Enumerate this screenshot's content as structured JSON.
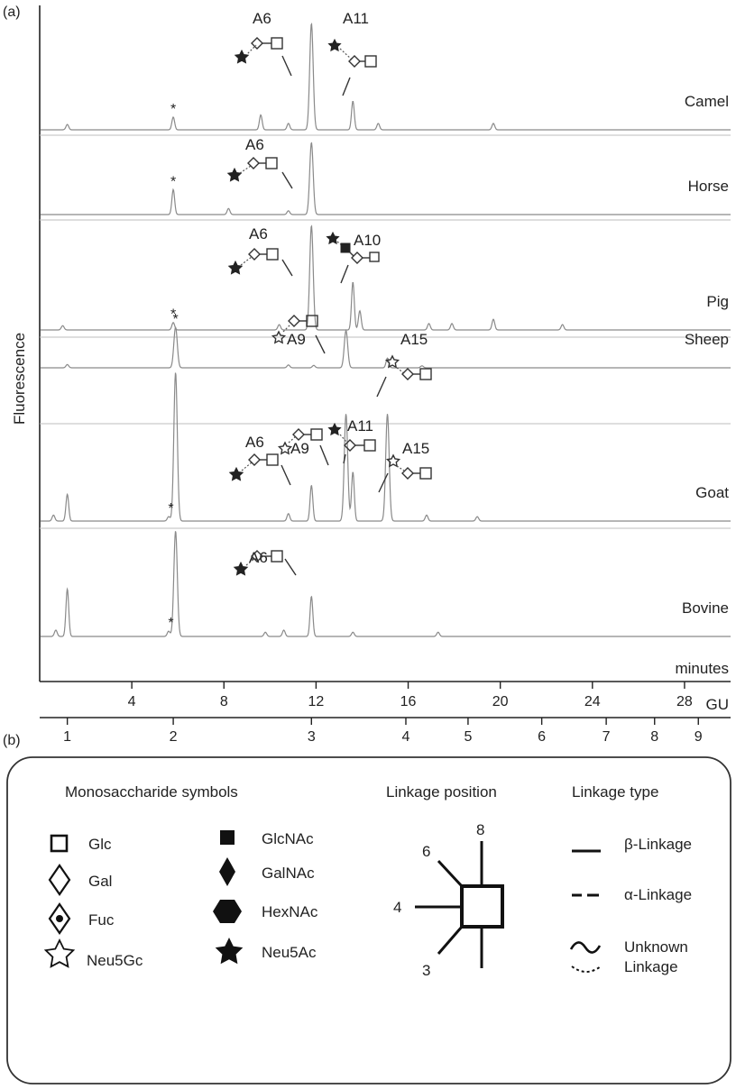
{
  "panel_a_label": "(a)",
  "panel_b_label": "(b)",
  "chart_data": {
    "type": "line",
    "ylabel": "Fluorescence",
    "xlabel": "minutes",
    "x2label": "GU",
    "xlim": [
      0,
      30
    ],
    "x_ticks": [
      4,
      8,
      12,
      16,
      20,
      24,
      28
    ],
    "gu_ticks": [
      1,
      2,
      3,
      4,
      5,
      6,
      7,
      8,
      9
    ],
    "gu_tick_minutes": [
      1.2,
      5.8,
      11.8,
      15.9,
      18.6,
      21.8,
      24.6,
      26.7,
      28.6
    ],
    "series": [
      {
        "name": "Camel",
        "peaks": [
          [
            1.2,
            0.05
          ],
          [
            5.8,
            0.12
          ],
          [
            9.6,
            0.14
          ],
          [
            10.8,
            0.06
          ],
          [
            11.8,
            1.0
          ],
          [
            13.6,
            0.27
          ],
          [
            14.7,
            0.06
          ],
          [
            19.7,
            0.06
          ]
        ],
        "labels": [
          {
            "text": "*",
            "x": 5.8
          },
          {
            "text": "A6",
            "x": 11.8
          },
          {
            "text": "A11",
            "x": 13.6
          }
        ]
      },
      {
        "name": "Horse",
        "peaks": [
          [
            5.8,
            0.33
          ],
          [
            8.2,
            0.08
          ],
          [
            10.8,
            0.05
          ],
          [
            11.8,
            0.95
          ]
        ],
        "labels": [
          {
            "text": "*",
            "x": 5.8
          },
          {
            "text": "A6",
            "x": 11.8
          }
        ]
      },
      {
        "name": "Pig",
        "peaks": [
          [
            1.0,
            0.04
          ],
          [
            5.8,
            0.07
          ],
          [
            10.4,
            0.05
          ],
          [
            11.8,
            0.98
          ],
          [
            13.6,
            0.45
          ],
          [
            13.9,
            0.18
          ],
          [
            16.9,
            0.06
          ],
          [
            17.9,
            0.06
          ],
          [
            19.7,
            0.1
          ],
          [
            22.7,
            0.05
          ]
        ],
        "labels": [
          {
            "text": "*",
            "x": 5.8
          },
          {
            "text": "A6",
            "x": 11.8
          },
          {
            "text": "A10",
            "x": 13.6
          }
        ]
      },
      {
        "name": "Sheep",
        "peaks": [
          [
            1.2,
            0.08
          ],
          [
            5.9,
            1.0
          ],
          [
            10.8,
            0.07
          ],
          [
            11.9,
            0.06
          ],
          [
            13.3,
            0.92
          ],
          [
            15.1,
            0.24
          ],
          [
            16.6,
            0.05
          ]
        ],
        "labels": [
          {
            "text": "*",
            "x": 5.9
          },
          {
            "text": "A9",
            "x": 13.3
          },
          {
            "text": "A15",
            "x": 15.1
          }
        ]
      },
      {
        "name": "Goat",
        "peaks": [
          [
            0.6,
            0.04
          ],
          [
            1.2,
            0.18
          ],
          [
            5.6,
            0.03
          ],
          [
            5.9,
            1.0
          ],
          [
            10.8,
            0.05
          ],
          [
            11.8,
            0.24
          ],
          [
            13.3,
            0.72
          ],
          [
            13.6,
            0.33
          ],
          [
            15.1,
            0.72
          ],
          [
            16.8,
            0.04
          ],
          [
            19.0,
            0.03
          ]
        ],
        "labels": [
          {
            "text": "*",
            "x": 5.7
          },
          {
            "text": "A6",
            "x": 11.8
          },
          {
            "text": "A9",
            "x": 13.3
          },
          {
            "text": "A11",
            "x": 13.6
          },
          {
            "text": "A15",
            "x": 15.1
          }
        ]
      },
      {
        "name": "Bovine",
        "peaks": [
          [
            0.7,
            0.06
          ],
          [
            1.2,
            0.45
          ],
          [
            5.6,
            0.05
          ],
          [
            5.9,
            1.0
          ],
          [
            9.8,
            0.04
          ],
          [
            10.6,
            0.06
          ],
          [
            11.8,
            0.38
          ],
          [
            13.6,
            0.04
          ],
          [
            17.3,
            0.04
          ]
        ],
        "labels": [
          {
            "text": "*",
            "x": 5.7
          },
          {
            "text": "A6",
            "x": 11.8
          }
        ]
      }
    ]
  },
  "legend": {
    "mono_title": "Monosaccharide symbols",
    "linkage_position_title": "Linkage position",
    "linkage_type_title": "Linkage type",
    "mono_col1": [
      {
        "label": "Glc",
        "icon": "square-open-icon"
      },
      {
        "label": "Gal",
        "icon": "diamond-open-icon"
      },
      {
        "label": "Fuc",
        "icon": "diamond-dot-icon"
      },
      {
        "label": "Neu5Gc",
        "icon": "star-open-icon"
      }
    ],
    "mono_col2": [
      {
        "label": "GlcNAc",
        "icon": "square-filled-icon"
      },
      {
        "label": "GalNAc",
        "icon": "diamond-filled-icon"
      },
      {
        "label": "HexNAc",
        "icon": "hexagon-filled-icon"
      },
      {
        "label": "Neu5Ac",
        "icon": "star-filled-icon"
      }
    ],
    "positions": [
      "6",
      "8",
      "4",
      "3"
    ],
    "linkage_types": [
      {
        "label": "β-Linkage",
        "icon": "solid-line-icon"
      },
      {
        "label": "α-Linkage",
        "icon": "dashed-line-icon"
      },
      {
        "label": "Unknown",
        "icon": "wave-line-icon"
      },
      {
        "label": "Linkage",
        "icon": "dotted-arc-icon"
      }
    ]
  }
}
